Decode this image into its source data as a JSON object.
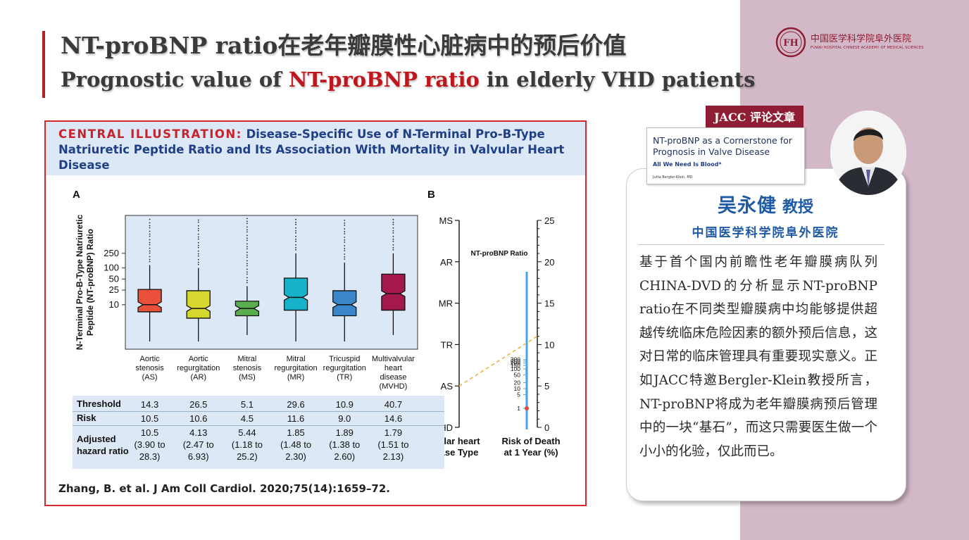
{
  "slide": {
    "title_cn": "NT-proBNP ratio在老年瓣膜性心脏病中的预后价值",
    "title_en_pre": "Prognostic value of ",
    "title_en_highlight": "NT-proBNP ratio",
    "title_en_post": " in elderly VHD patients",
    "accent_color": "#b52025",
    "band_color": "#d3b8c7"
  },
  "logo": {
    "name_cn": "中国医学科学院阜外医院",
    "sub": "FUWAI HOSPITAL   CHINESE ACADEMY OF MEDICAL SCIENCES",
    "mark": "FH"
  },
  "figure": {
    "title_lead": "CENTRAL ILLUSTRATION:",
    "title_rest": " Disease-Specific Use of N-Terminal Pro-B-Type Natriuretic Peptide Ratio and Its Association With Mortality in Valvular Heart Disease",
    "citation": "Zhang, B. et al. J Am Coll Cardiol. 2020;75(14):1659–72."
  },
  "chart_data": [
    {
      "type": "box",
      "panel": "A",
      "ylabel": "N-Terminal Pro-B-Type Natriuretic Peptide (NT-proBNP) Ratio",
      "y_ticks": [
        "250",
        "100",
        "50",
        "25",
        "10"
      ],
      "categories": [
        {
          "label_lines": [
            "Aortic",
            "stenosis",
            "(AS)"
          ],
          "color": "#e8503c",
          "q1": 6.4,
          "median": 10,
          "q3": 26,
          "whisker_low": 1,
          "whisker_high": 120
        },
        {
          "label_lines": [
            "Aortic",
            "regurgitation",
            "(AR)"
          ],
          "color": "#d5d62e",
          "q1": 4.3,
          "median": 7.9,
          "q3": 24,
          "whisker_low": 1,
          "whisker_high": 100
        },
        {
          "label_lines": [
            "Mitral",
            "stenosis",
            "(MS)"
          ],
          "color": "#59ad4c",
          "q1": 5,
          "median": 7.9,
          "q3": 12.5,
          "whisker_low": 1.5,
          "whisker_high": 32
        },
        {
          "label_lines": [
            "Mitral",
            "regurgitation",
            "(MR)"
          ],
          "color": "#16b2ca",
          "q1": 7.1,
          "median": 15.8,
          "q3": 53,
          "whisker_low": 1,
          "whisker_high": 250
        },
        {
          "label_lines": [
            "Tricuspid",
            "regurgitation",
            "(TR)"
          ],
          "color": "#3a86c8",
          "q1": 5,
          "median": 10,
          "q3": 24,
          "whisker_low": 1,
          "whisker_high": 140
        },
        {
          "label_lines": [
            "Multivalvular",
            "heart",
            "disease",
            "(MVHD)"
          ],
          "color": "#a4184e",
          "q1": 7.1,
          "median": 20,
          "q3": 68,
          "whisker_low": 1.5,
          "whisker_high": 250
        }
      ]
    },
    {
      "type": "nomogram",
      "panel": "B",
      "left_axis_title": [
        "Valvular heart",
        "disease Type"
      ],
      "left_axis_labels": [
        "MS",
        "AR",
        "MR",
        "TR",
        "AS",
        "MVHD"
      ],
      "middle_axis_title": "NT-proBNP Ratio",
      "middle_axis_ticks": [
        "300",
        "250",
        "200",
        "150",
        "100",
        "50",
        "20",
        "10",
        "5",
        "1"
      ],
      "right_axis_title": [
        "Risk of Death",
        "at 1 Year (%)"
      ],
      "right_axis_ticks": [
        25,
        20,
        15,
        10,
        5,
        0
      ],
      "example_line": {
        "from_type": "AS",
        "to_risk": 11
      }
    }
  ],
  "stats_table": {
    "threshold_label": "Threshold",
    "risk_label": "Risk",
    "hr_label_lines": [
      "Adjusted",
      "hazard ratio"
    ],
    "threshold": [
      "14.3",
      "26.5",
      "5.1",
      "29.6",
      "10.9",
      "40.7"
    ],
    "risk": [
      "10.5",
      "10.6",
      "4.5",
      "11.6",
      "9.0",
      "14.6"
    ],
    "hr": [
      "10.5",
      "4.13",
      "5.44",
      "1.85",
      "1.89",
      "1.79"
    ],
    "ci_line1": [
      "(3.90 to",
      "(2.47 to",
      "(1.18 to",
      "(1.48 to",
      "(1.38 to",
      "(1.51 to"
    ],
    "ci_line2": [
      "28.3)",
      "6.93)",
      "25.2)",
      "2.30)",
      "2.60)",
      "2.13)"
    ]
  },
  "commentary": {
    "badge": "JACC 评论文章",
    "paper_title": "NT-proBNP as a Cornerstone for Prognosis in Valve Disease",
    "paper_subtitle": "All We Need Is Blood*",
    "paper_author": "Jutta Bergler-Klein, MD",
    "name": "吴永健",
    "title": "教授",
    "affiliation": "中国医学科学院阜外医院",
    "body": "基于首个国内前瞻性老年瓣膜病队列CHINA-DVD的分析显示NT-proBNP ratio在不同类型瓣膜病中均能够提供超越传统临床危险因素的额外预后信息，这对日常的临床管理具有重要现实意义。正如JACC特邀Bergler-Klein教授所言，NT-proBNP将成为老年瓣膜病预后管理中的一块“基石”，而这只需要医生做一个小小的化验，仅此而已。"
  }
}
